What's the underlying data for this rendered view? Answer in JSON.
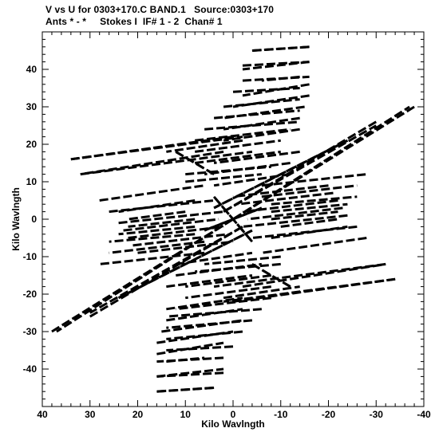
{
  "header": {
    "title_line1": "V vs U for 0303+170.C BAND.1   Source:0303+170",
    "title_line2": "Ants * - *     Stokes I  IF# 1 - 2  Chan# 1"
  },
  "chart_data": {
    "type": "scatter",
    "title": "V vs U for 0303+170.C BAND.1   Source:0303+170",
    "subtitle": "Ants * - *     Stokes I  IF# 1 - 2  Chan# 1",
    "xlabel": "Kilo Wavlngth",
    "ylabel": "Kilo Wavlngth",
    "xlim": [
      40,
      -40
    ],
    "ylim": [
      -50,
      50
    ],
    "x_ticks": [
      40,
      30,
      20,
      10,
      0,
      -10,
      -20,
      -30,
      -40
    ],
    "y_ticks": [
      -40,
      -30,
      -20,
      -10,
      0,
      10,
      20,
      30,
      40
    ],
    "x_tick_labels": [
      "40",
      "30",
      "20",
      "10",
      "0",
      "-10",
      "-20",
      "-30",
      "-40"
    ],
    "y_tick_labels": [
      "-40",
      "-30",
      "-20",
      "-10",
      "0",
      "10",
      "20",
      "30",
      "40"
    ],
    "grid": false,
    "marker_color": "#000000",
    "uv_tracks": [
      {
        "u": [
          34,
          -2
        ],
        "v": [
          16,
          22
        ]
      },
      {
        "u": [
          32,
          -4
        ],
        "v": [
          12,
          18
        ]
      },
      {
        "u": [
          28,
          6
        ],
        "v": [
          5,
          9
        ]
      },
      {
        "u": [
          26,
          4
        ],
        "v": [
          2,
          5
        ]
      },
      {
        "u": [
          24,
          2
        ],
        "v": [
          -1,
          2
        ]
      },
      {
        "u": [
          23,
          3
        ],
        "v": [
          -3,
          0
        ]
      },
      {
        "u": [
          22,
          2
        ],
        "v": [
          -5,
          -2
        ]
      },
      {
        "u": [
          21,
          1
        ],
        "v": [
          -7,
          -4
        ]
      },
      {
        "u": [
          20,
          0
        ],
        "v": [
          -9,
          -6
        ]
      },
      {
        "u": [
          -6,
          -28
        ],
        "v": [
          9,
          12
        ]
      },
      {
        "u": [
          -6,
          -26
        ],
        "v": [
          6,
          9
        ]
      },
      {
        "u": [
          -8,
          -26
        ],
        "v": [
          4,
          6
        ]
      },
      {
        "u": [
          -8,
          -24
        ],
        "v": [
          2,
          4
        ]
      },
      {
        "u": [
          -8,
          -22
        ],
        "v": [
          0,
          2
        ]
      },
      {
        "u": [
          -10,
          -22
        ],
        "v": [
          -2,
          0
        ]
      },
      {
        "u": [
          -8,
          -24
        ],
        "v": [
          -5,
          -2
        ]
      },
      {
        "u": [
          -2,
          -32
        ],
        "v": [
          -18,
          -12
        ]
      },
      {
        "u": [
          0,
          -34
        ],
        "v": [
          -22,
          -16
        ]
      },
      {
        "u": [
          2,
          -14
        ],
        "v": [
          -21,
          -18
        ]
      },
      {
        "u": [
          12,
          -4
        ],
        "v": [
          -12,
          -9
        ]
      },
      {
        "u": [
          12,
          -6
        ],
        "v": [
          -15,
          -12
        ]
      },
      {
        "u": [
          14,
          -4
        ],
        "v": [
          -18,
          -15
        ]
      },
      {
        "u": [
          14,
          -2
        ],
        "v": [
          -24,
          -21
        ]
      },
      {
        "u": [
          14,
          -2
        ],
        "v": [
          -27,
          -24
        ]
      },
      {
        "u": [
          15,
          -2
        ],
        "v": [
          -30,
          -27
        ]
      },
      {
        "u": [
          16,
          0
        ],
        "v": [
          -33,
          -30
        ]
      },
      {
        "u": [
          16,
          2
        ],
        "v": [
          -36,
          -33
        ]
      },
      {
        "u": [
          14,
          6
        ],
        "v": [
          -38,
          -37
        ]
      },
      {
        "u": [
          16,
          2
        ],
        "v": [
          -42,
          -40
        ]
      },
      {
        "u": [
          16,
          4
        ],
        "v": [
          -46,
          -45
        ]
      },
      {
        "u": [
          -4,
          -16
        ],
        "v": [
          45,
          46
        ]
      },
      {
        "u": [
          -2,
          -16
        ],
        "v": [
          41,
          42
        ]
      },
      {
        "u": [
          -2,
          -16
        ],
        "v": [
          37,
          38
        ]
      },
      {
        "u": [
          0,
          -14
        ],
        "v": [
          34,
          35
        ]
      },
      {
        "u": [
          2,
          -14
        ],
        "v": [
          30,
          32
        ]
      },
      {
        "u": [
          4,
          -14
        ],
        "v": [
          27,
          29
        ]
      },
      {
        "u": [
          6,
          -14
        ],
        "v": [
          24,
          26
        ]
      },
      {
        "u": [
          8,
          -12
        ],
        "v": [
          21,
          24
        ]
      },
      {
        "u": [
          8,
          -10
        ],
        "v": [
          18,
          21
        ]
      },
      {
        "u": [
          8,
          -10
        ],
        "v": [
          15,
          18
        ]
      },
      {
        "u": [
          10,
          -8
        ],
        "v": [
          12,
          14
        ]
      },
      {
        "u": [
          10,
          -6
        ],
        "v": [
          10,
          12
        ]
      },
      {
        "u": [
          0,
          -37
        ],
        "v": [
          0,
          30
        ]
      },
      {
        "u": [
          2,
          -30
        ],
        "v": [
          2,
          25
        ]
      },
      {
        "u": [
          4,
          -24
        ],
        "v": [
          3,
          21
        ]
      },
      {
        "u": [
          38,
          0
        ],
        "v": [
          -30,
          0
        ]
      },
      {
        "u": [
          30,
          -2
        ],
        "v": [
          -26,
          -2
        ]
      },
      {
        "u": [
          24,
          -4
        ],
        "v": [
          -21,
          -3
        ]
      },
      {
        "u": [
          4,
          -4
        ],
        "v": [
          6,
          -6
        ]
      },
      {
        "u": [
          6,
          -6
        ],
        "v": [
          -3,
          3
        ]
      },
      {
        "u": [
          12,
          4
        ],
        "v": [
          18,
          12
        ]
      },
      {
        "u": [
          -4,
          -12
        ],
        "v": [
          -12,
          -18
        ]
      }
    ]
  }
}
